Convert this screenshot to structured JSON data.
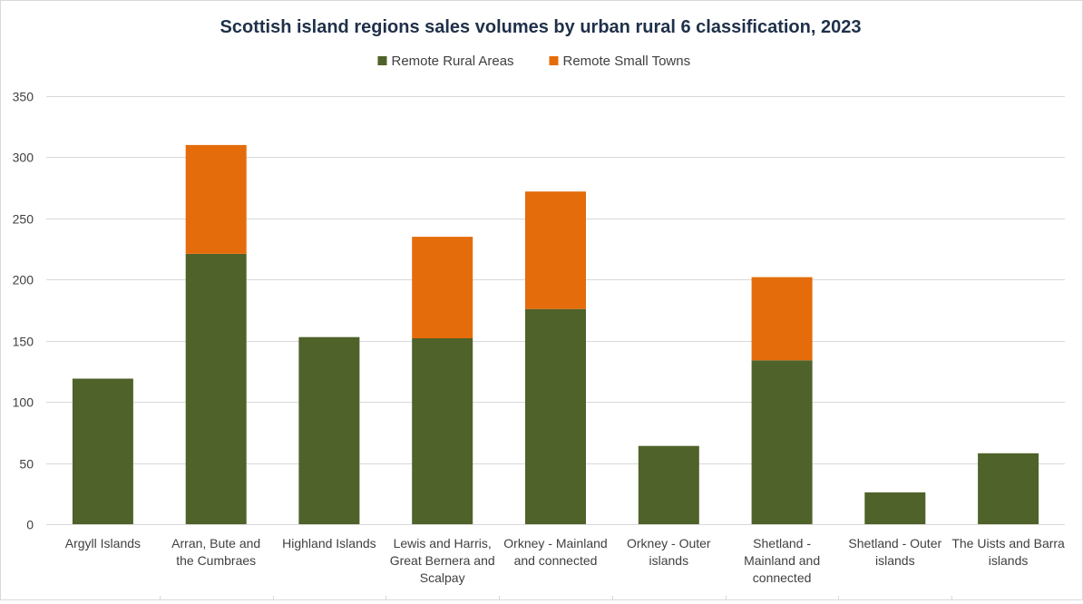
{
  "chart_data": {
    "type": "bar",
    "stacked": true,
    "title": "Scottish island regions sales volumes by urban rural 6 classification, 2023",
    "xlabel": "",
    "ylabel": "",
    "ylim": [
      0,
      350
    ],
    "yticks": [
      0,
      50,
      100,
      150,
      200,
      250,
      300,
      350
    ],
    "grid": true,
    "legend_position": "top",
    "categories": [
      [
        "Argyll Islands"
      ],
      [
        "Arran, Bute and",
        "the Cumbraes"
      ],
      [
        "Highland Islands"
      ],
      [
        "Lewis and Harris,",
        "Great Bernera and",
        "Scalpay"
      ],
      [
        "Orkney - Mainland",
        "and connected"
      ],
      [
        "Orkney - Outer",
        "islands"
      ],
      [
        "Shetland -",
        "Mainland and",
        "connected"
      ],
      [
        "Shetland - Outer",
        "islands"
      ],
      [
        "The Uists and Barra",
        "islands"
      ]
    ],
    "series": [
      {
        "name": "Remote Rural Areas",
        "color": "#4f622a",
        "values": [
          119,
          221,
          153,
          152,
          176,
          64,
          134,
          26,
          58
        ]
      },
      {
        "name": "Remote Small Towns",
        "color": "#e46c0a",
        "values": [
          0,
          89,
          0,
          83,
          96,
          0,
          68,
          0,
          0
        ]
      }
    ]
  }
}
